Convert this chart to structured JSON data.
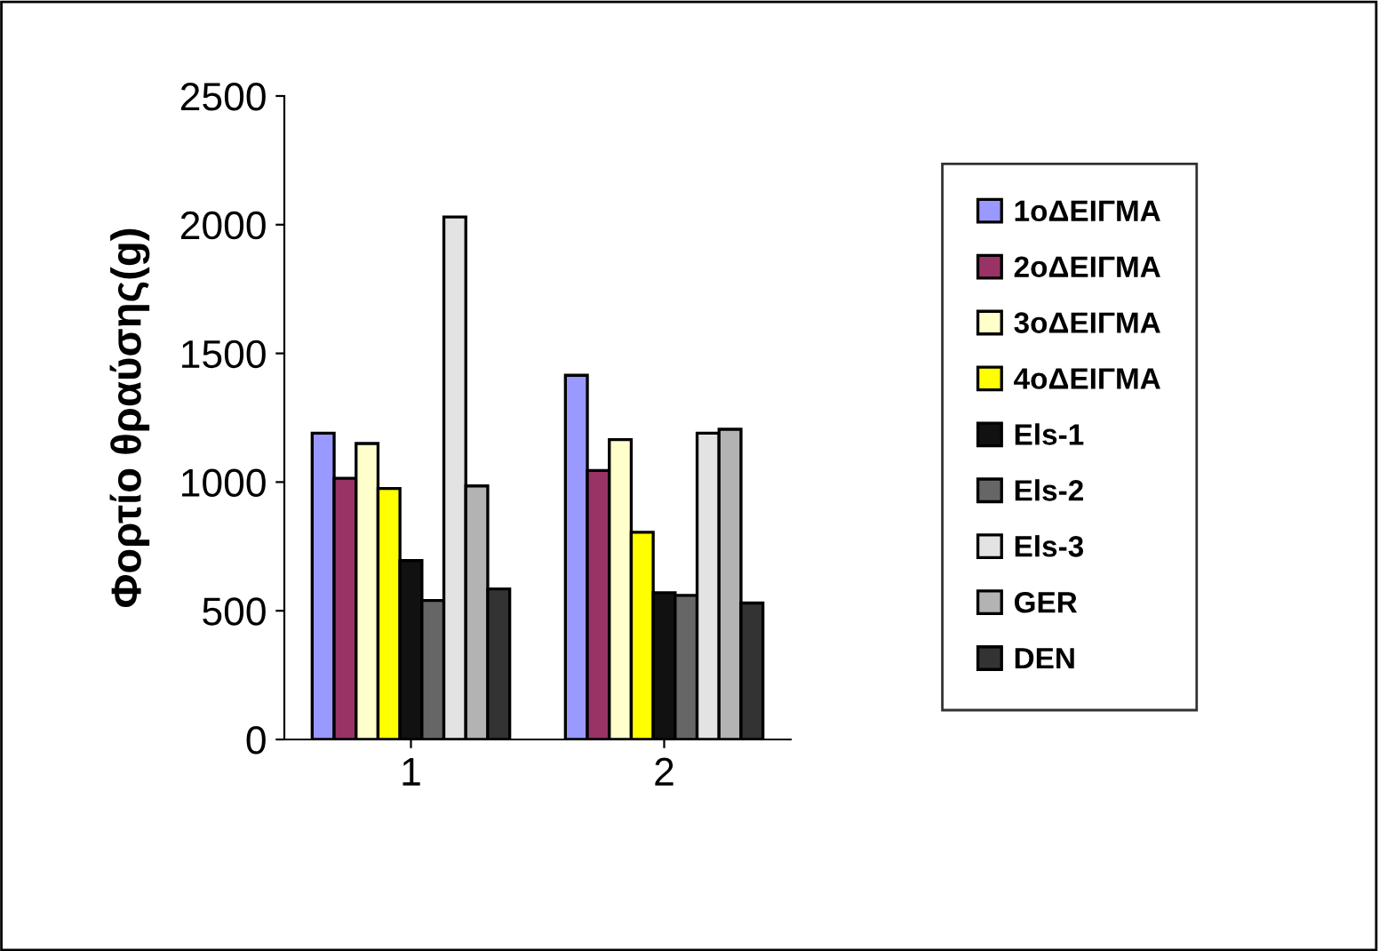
{
  "chart_data": {
    "type": "bar",
    "ylabel": "Φορτίο θραύσης(g)",
    "categories": [
      "1",
      "2"
    ],
    "ylim": [
      0,
      2500
    ],
    "yticks": [
      0,
      500,
      1000,
      1500,
      2000,
      2500
    ],
    "grid": false,
    "legend": "right",
    "series": [
      {
        "name": "1oΔΕΙΓΜΑ",
        "color": "#9999ff",
        "values": [
          1190,
          1415
        ]
      },
      {
        "name": "2oΔΕΙΓΜΑ",
        "color": "#993366",
        "values": [
          1015,
          1045
        ]
      },
      {
        "name": "3oΔΕΙΓΜΑ",
        "color": "#ffffcc",
        "values": [
          1150,
          1165
        ]
      },
      {
        "name": "4oΔΕΙΓΜΑ",
        "color": "#ffff00",
        "values": [
          975,
          805
        ]
      },
      {
        "name": "Els-1",
        "color": "#111111",
        "values": [
          695,
          570
        ]
      },
      {
        "name": "Els-2",
        "color": "#666666",
        "values": [
          540,
          560
        ]
      },
      {
        "name": "Els-3",
        "color": "#e3e3e3",
        "values": [
          2030,
          1190
        ]
      },
      {
        "name": "GER",
        "color": "#b3b3b3",
        "values": [
          985,
          1205
        ]
      },
      {
        "name": "DEN",
        "color": "#333333",
        "values": [
          585,
          530
        ]
      }
    ]
  }
}
